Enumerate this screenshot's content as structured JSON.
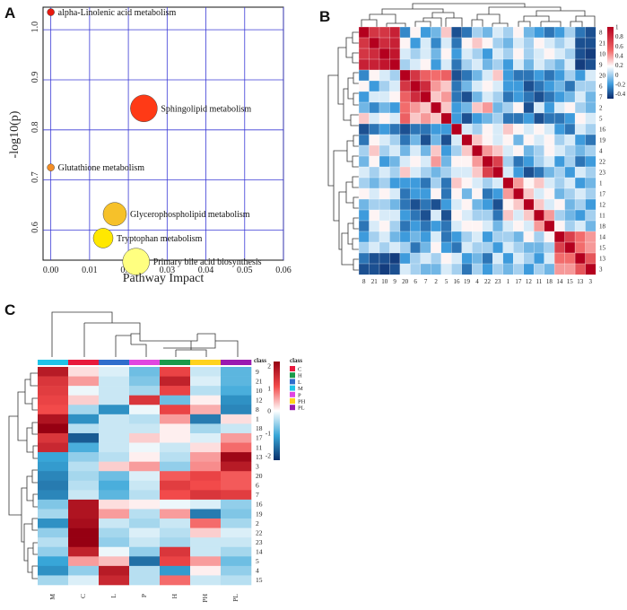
{
  "panels": {
    "a": "A",
    "b": "B",
    "c": "C"
  },
  "chart_data": [
    {
      "type": "scatter",
      "panel": "A",
      "xlabel": "Pathway Impact",
      "ylabel": "-log10(p)",
      "xlim": [
        -0.002,
        0.06
      ],
      "ylim": [
        0.54,
        1.045
      ],
      "xticks": [
        0,
        0.01,
        0.02,
        0.03,
        0.04,
        0.05,
        0.06
      ],
      "xtick_labels": [
        "0.00",
        "0.01",
        "0.02",
        "0.03",
        "0.04",
        "0.05",
        "0.06"
      ],
      "yticks": [
        0.6,
        0.7,
        0.8,
        0.9,
        1.0
      ],
      "ytick_labels": [
        "0.6",
        "0.7",
        "0.8",
        "0.9",
        "1.0"
      ],
      "grid": true,
      "points": [
        {
          "label": "alpha-Linolenic acid metabolism",
          "x": 0.0,
          "y": 1.035,
          "size": 4,
          "color": "#e8190f"
        },
        {
          "label": "Sphingolipid metabolism",
          "x": 0.024,
          "y": 0.843,
          "size": 15,
          "color": "#ff3a16"
        },
        {
          "label": "Glutathione metabolism",
          "x": 0.0,
          "y": 0.725,
          "size": 4,
          "color": "#f38d25"
        },
        {
          "label": "Glycerophospholipid metabolism",
          "x": 0.0165,
          "y": 0.632,
          "size": 13,
          "color": "#f6c12a"
        },
        {
          "label": "Tryptophan metabolism",
          "x": 0.0135,
          "y": 0.584,
          "size": 11,
          "color": "#ffe800"
        },
        {
          "label": "Primary bile acid biosynthesis",
          "x": 0.022,
          "y": 0.537,
          "size": 15,
          "color": "#ffff80"
        }
      ]
    },
    {
      "type": "heatmap",
      "panel": "B",
      "order": [
        "8",
        "21",
        "10",
        "9",
        "20",
        "6",
        "7",
        "2",
        "5",
        "16",
        "19",
        "4",
        "22",
        "23",
        "1",
        "17",
        "12",
        "11",
        "18",
        "14",
        "15",
        "13",
        "3"
      ],
      "colorbar": {
        "ticks": [
          1,
          0.8,
          0.6,
          0.4,
          0.2,
          0,
          -0.2,
          -0.4
        ],
        "labels": [
          "1",
          "0.8",
          "0.6",
          "0.4",
          "0.2",
          "0",
          "-0.2",
          "-0.4"
        ],
        "range": [
          -0.5,
          1.0
        ]
      },
      "values": [
        [
          1.0,
          0.75,
          0.75,
          0.85,
          -0.25,
          0.2,
          -0.2,
          -0.1,
          0.3,
          -0.4,
          -0.3,
          0.0,
          -0.1,
          0.1,
          0.0,
          0.2,
          -0.1,
          -0.2,
          -0.3,
          -0.2,
          0.0,
          -0.3,
          -0.4
        ],
        [
          0.75,
          1.0,
          0.8,
          0.85,
          0.2,
          -0.2,
          0.1,
          -0.25,
          0.1,
          -0.3,
          0.2,
          0.3,
          0.2,
          0.0,
          -0.1,
          0.1,
          0.0,
          0.2,
          0.1,
          0.0,
          0.1,
          -0.4,
          -0.4
        ],
        [
          0.75,
          0.8,
          1.0,
          0.9,
          0.1,
          0.0,
          0.1,
          -0.1,
          0.2,
          -0.2,
          0.1,
          0.0,
          -0.2,
          0.1,
          0.0,
          0.2,
          0.0,
          0.1,
          0.2,
          0.1,
          0.0,
          -0.4,
          -0.45
        ],
        [
          0.85,
          0.85,
          0.9,
          1.0,
          0.0,
          0.1,
          0.2,
          -0.2,
          0.1,
          -0.3,
          0.0,
          0.1,
          -0.1,
          0.0,
          -0.2,
          0.1,
          -0.1,
          0.1,
          0.0,
          -0.1,
          0.1,
          -0.45,
          -0.4
        ],
        [
          -0.25,
          0.2,
          0.1,
          0.0,
          1.0,
          0.75,
          0.55,
          0.5,
          0.55,
          -0.4,
          -0.3,
          -0.1,
          0.1,
          0.3,
          -0.2,
          -0.3,
          -0.3,
          -0.2,
          -0.3,
          -0.2,
          0.0,
          -0.2,
          0.1
        ],
        [
          0.2,
          -0.2,
          0.0,
          0.1,
          0.75,
          1.0,
          0.8,
          0.4,
          0.3,
          -0.3,
          -0.1,
          0.1,
          0.2,
          0.1,
          -0.2,
          -0.2,
          -0.4,
          -0.3,
          -0.2,
          -0.1,
          -0.3,
          0.0,
          0.0
        ],
        [
          -0.2,
          0.1,
          0.1,
          0.2,
          0.55,
          0.8,
          1.0,
          0.3,
          0.4,
          -0.3,
          -0.4,
          -0.1,
          0.1,
          0.0,
          -0.3,
          -0.2,
          -0.3,
          -0.4,
          -0.3,
          -0.2,
          -0.1,
          0.1,
          -0.1
        ],
        [
          -0.1,
          -0.25,
          -0.1,
          -0.2,
          0.5,
          0.4,
          0.3,
          1.0,
          0.3,
          -0.2,
          -0.1,
          0.3,
          0.4,
          -0.1,
          0.0,
          0.2,
          -0.4,
          0.1,
          -0.2,
          0.1,
          0.2,
          0.0,
          -0.1
        ],
        [
          0.3,
          0.1,
          0.2,
          0.1,
          0.55,
          0.3,
          0.4,
          0.3,
          1.0,
          -0.2,
          -0.4,
          -0.2,
          -0.1,
          0.0,
          -0.3,
          -0.3,
          -0.2,
          -0.4,
          -0.3,
          -0.3,
          -0.2,
          0.2,
          0.1
        ],
        [
          -0.4,
          -0.3,
          -0.2,
          -0.3,
          -0.4,
          -0.3,
          -0.3,
          -0.2,
          -0.2,
          1.0,
          0.1,
          0.0,
          0.2,
          0.1,
          0.3,
          0.2,
          0.1,
          0.2,
          0.1,
          -0.2,
          -0.3,
          0.1,
          0.0
        ],
        [
          -0.3,
          0.2,
          0.1,
          0.0,
          -0.3,
          -0.1,
          -0.4,
          -0.1,
          -0.4,
          0.1,
          1.0,
          0.3,
          0.2,
          0.1,
          0.2,
          -0.1,
          0.2,
          0.1,
          0.2,
          0.0,
          0.1,
          -0.2,
          -0.3
        ],
        [
          0.0,
          0.3,
          0.0,
          0.1,
          -0.1,
          0.1,
          -0.1,
          0.3,
          -0.2,
          0.0,
          0.3,
          1.0,
          0.4,
          0.3,
          0.1,
          0.2,
          -0.1,
          0.0,
          0.2,
          0.1,
          0.0,
          -0.1,
          0.0
        ],
        [
          -0.1,
          0.2,
          -0.2,
          -0.1,
          0.1,
          0.2,
          0.1,
          0.4,
          -0.1,
          0.2,
          0.2,
          0.4,
          1.0,
          0.7,
          0.0,
          -0.3,
          -0.2,
          0.0,
          0.1,
          -0.2,
          0.0,
          -0.3,
          -0.2
        ],
        [
          0.1,
          0.0,
          0.1,
          0.0,
          0.3,
          0.1,
          0.0,
          -0.1,
          0.0,
          0.1,
          0.1,
          0.3,
          0.7,
          1.0,
          0.1,
          -0.2,
          -0.4,
          -0.3,
          -0.1,
          0.0,
          -0.2,
          0.1,
          0.0
        ],
        [
          0.0,
          -0.1,
          0.0,
          -0.2,
          -0.2,
          -0.2,
          -0.3,
          0.0,
          -0.3,
          0.3,
          0.2,
          0.1,
          0.0,
          0.1,
          1.0,
          0.4,
          0.2,
          0.3,
          0.1,
          0.0,
          0.1,
          -0.2,
          -0.1
        ],
        [
          0.2,
          0.1,
          0.2,
          0.1,
          -0.3,
          -0.2,
          -0.2,
          0.2,
          -0.3,
          0.2,
          -0.1,
          0.2,
          -0.3,
          -0.2,
          0.4,
          1.0,
          0.3,
          0.1,
          0.2,
          -0.1,
          0.0,
          0.1,
          0.0
        ],
        [
          -0.1,
          0.0,
          0.0,
          -0.1,
          -0.3,
          -0.4,
          -0.3,
          -0.4,
          -0.2,
          0.1,
          0.2,
          -0.1,
          -0.2,
          -0.4,
          0.2,
          0.3,
          1.0,
          0.3,
          0.1,
          0.2,
          -0.1,
          0.0,
          -0.2
        ],
        [
          -0.2,
          0.2,
          0.1,
          0.1,
          -0.2,
          -0.3,
          -0.4,
          0.1,
          -0.4,
          0.2,
          0.1,
          0.0,
          0.0,
          -0.3,
          0.3,
          0.1,
          0.3,
          1.0,
          0.4,
          0.0,
          -0.1,
          -0.2,
          0.0
        ],
        [
          -0.3,
          0.1,
          0.2,
          0.0,
          -0.3,
          -0.2,
          -0.3,
          -0.2,
          -0.3,
          0.1,
          0.2,
          0.2,
          0.1,
          -0.1,
          0.1,
          0.2,
          0.1,
          0.4,
          1.0,
          0.2,
          0.0,
          0.1,
          -0.1
        ],
        [
          -0.2,
          0.0,
          0.1,
          -0.1,
          -0.2,
          -0.1,
          -0.2,
          0.1,
          -0.3,
          -0.2,
          0.0,
          0.1,
          -0.2,
          0.0,
          0.0,
          -0.1,
          0.2,
          0.0,
          0.2,
          1.0,
          0.7,
          0.5,
          0.4
        ],
        [
          0.0,
          0.1,
          0.0,
          0.1,
          0.0,
          -0.3,
          -0.1,
          0.2,
          -0.2,
          -0.3,
          0.1,
          0.0,
          0.0,
          -0.2,
          0.1,
          0.0,
          -0.1,
          -0.1,
          0.0,
          0.7,
          1.0,
          0.5,
          0.4
        ],
        [
          -0.3,
          -0.4,
          -0.4,
          -0.45,
          -0.2,
          0.0,
          0.1,
          0.0,
          0.2,
          0.1,
          -0.2,
          -0.1,
          -0.3,
          0.1,
          -0.2,
          0.1,
          0.0,
          -0.2,
          0.1,
          0.5,
          0.5,
          1.0,
          0.6
        ],
        [
          -0.4,
          -0.4,
          -0.45,
          -0.4,
          0.1,
          0.0,
          -0.1,
          -0.1,
          0.1,
          0.0,
          -0.3,
          0.0,
          -0.2,
          0.0,
          -0.1,
          0.0,
          -0.2,
          0.0,
          -0.1,
          0.4,
          0.4,
          0.6,
          1.0
        ]
      ]
    },
    {
      "type": "heatmap",
      "panel": "C",
      "columns": [
        "M",
        "C",
        "L",
        "P",
        "H",
        "PH",
        "PL"
      ],
      "column_colors": [
        "#1ec3e8",
        "#e8193c",
        "#2f6dcc",
        "#e046e0",
        "#1a9a4a",
        "#ffd21e",
        "#9a1ab0"
      ],
      "class_label": "class",
      "rows": [
        "9",
        "21",
        "10",
        "12",
        "8",
        "1",
        "18",
        "17",
        "11",
        "13",
        "3",
        "20",
        "6",
        "7",
        "16",
        "19",
        "2",
        "22",
        "23",
        "14",
        "5",
        "4",
        "15"
      ],
      "colorbar": {
        "ticks": [
          2,
          1,
          0,
          -1,
          -2
        ],
        "labels": [
          "2",
          "1",
          "0",
          "-1",
          "-2"
        ],
        "range": [
          -2.2,
          2.2
        ]
      },
      "legend": {
        "title": "class",
        "entries": [
          "C",
          "H",
          "L",
          "M",
          "P",
          "PH",
          "PL"
        ],
        "colors": [
          "#e8193c",
          "#1a9a4a",
          "#2f6dcc",
          "#1ec3e8",
          "#e046e0",
          "#ffd21e",
          "#9a1ab0"
        ]
      },
      "values": [
        [
          1.8,
          0.2,
          -0.2,
          -0.8,
          1.2,
          -0.3,
          -0.9
        ],
        [
          1.4,
          0.6,
          -0.3,
          -0.7,
          1.7,
          -0.2,
          -0.9
        ],
        [
          1.3,
          -0.1,
          -0.3,
          -0.5,
          1.2,
          -0.4,
          -1.0
        ],
        [
          1.2,
          0.3,
          -0.3,
          1.4,
          -0.8,
          0.1,
          -1.3
        ],
        [
          1.1,
          -0.5,
          -1.3,
          -0.1,
          1.2,
          0.5,
          -1.4
        ],
        [
          1.9,
          -1.3,
          -0.3,
          -0.4,
          0.6,
          -1.5,
          0.2
        ],
        [
          2.3,
          -0.4,
          -0.3,
          -0.3,
          0.1,
          -0.5,
          -0.3
        ],
        [
          1.4,
          -1.8,
          -0.3,
          0.3,
          0.1,
          -0.2,
          0.6
        ],
        [
          1.6,
          -1.0,
          -0.3,
          -0.1,
          -0.3,
          0.2,
          0.9
        ],
        [
          -1.1,
          -0.6,
          -0.4,
          0.1,
          -0.4,
          0.6,
          2.1
        ],
        [
          -1.2,
          -0.4,
          0.3,
          0.6,
          -0.6,
          0.7,
          1.8
        ],
        [
          -1.4,
          -0.5,
          -0.8,
          -0.2,
          1.0,
          1.2,
          1.0
        ],
        [
          -1.5,
          -0.4,
          -1.0,
          -0.3,
          1.3,
          1.1,
          1.0
        ],
        [
          -1.4,
          -0.3,
          -0.9,
          -0.4,
          1.1,
          1.4,
          1.3
        ],
        [
          -0.7,
          1.9,
          0.2,
          0.1,
          -0.1,
          -0.2,
          -0.6
        ],
        [
          -0.5,
          1.9,
          0.6,
          -0.4,
          0.6,
          -1.5,
          -0.7
        ],
        [
          -1.3,
          2.0,
          -0.3,
          -0.5,
          -0.3,
          0.9,
          -0.5
        ],
        [
          -0.6,
          2.4,
          -0.5,
          -0.2,
          -0.4,
          0.3,
          -0.2
        ],
        [
          -0.4,
          2.5,
          -0.6,
          -0.3,
          -0.5,
          -0.3,
          -0.3
        ],
        [
          -0.6,
          1.7,
          -0.1,
          -0.6,
          1.4,
          -0.3,
          -0.5
        ],
        [
          -1.1,
          0.6,
          0.4,
          -1.6,
          1.2,
          0.6,
          -0.8
        ],
        [
          -1.3,
          -0.6,
          1.8,
          -0.4,
          -1.2,
          0.1,
          -0.6
        ],
        [
          -0.5,
          -0.2,
          1.6,
          -0.4,
          0.9,
          -0.3,
          -0.4
        ]
      ]
    }
  ]
}
